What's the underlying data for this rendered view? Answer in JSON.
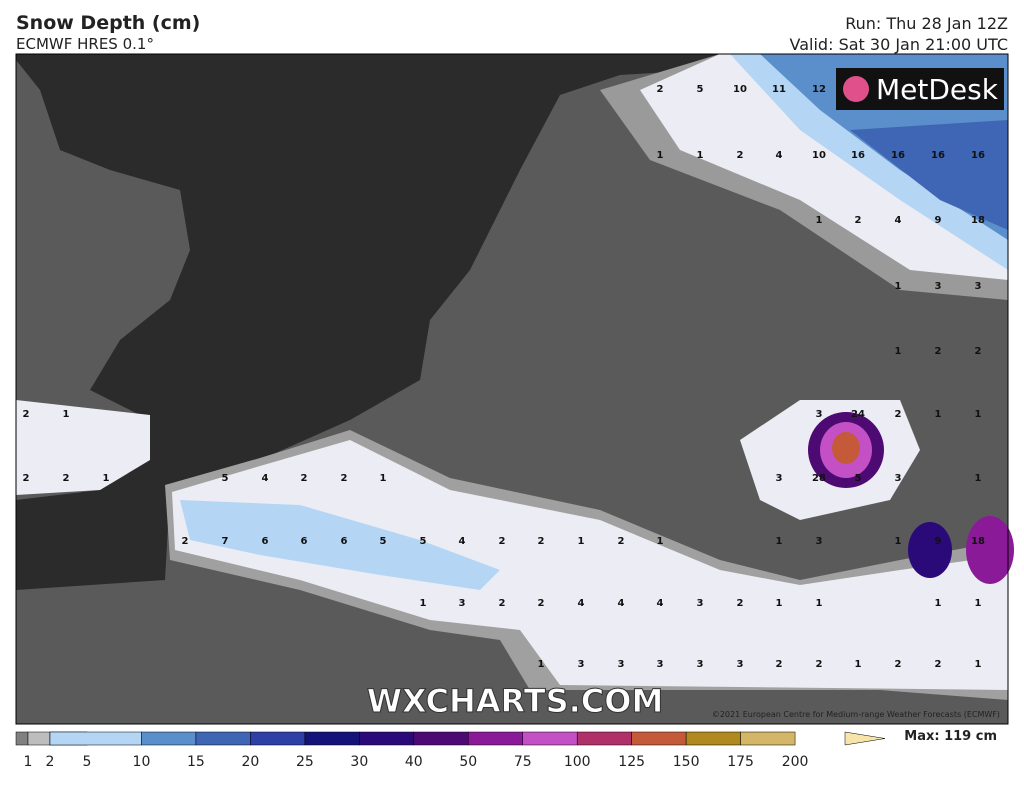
{
  "header": {
    "title": "Snow Depth (cm)",
    "subtitle": "ECMWF HRES 0.1°",
    "run": "Run: Thu 28 Jan 12Z",
    "valid": "Valid: Sat 30 Jan 21:00 UTC"
  },
  "logo": "MetDesk",
  "watermark": "WXCHARTS.COM",
  "copyright": "©2021 European Centre for Medium-range Weather Forecasts (ECMWF)",
  "map": {
    "values": [
      [
        2,
        5,
        10,
        11,
        12
      ],
      [
        1,
        1,
        2,
        4,
        10,
        16,
        16,
        16,
        16
      ],
      [
        1,
        2,
        4,
        9,
        18
      ],
      [
        1,
        3,
        3
      ],
      [
        1,
        2,
        2
      ],
      [
        2,
        1,
        3,
        24,
        2,
        1,
        1
      ],
      [
        2,
        2,
        1,
        5,
        4,
        2,
        2,
        1,
        3,
        28,
        5,
        3,
        1
      ],
      [
        2,
        7,
        6,
        6,
        6,
        5,
        5,
        4,
        2,
        2,
        1,
        2,
        1,
        1,
        3,
        1,
        9,
        18
      ],
      [
        1,
        3,
        2,
        2,
        4,
        4,
        4,
        3,
        2,
        1,
        1,
        1,
        1
      ],
      [
        1,
        3,
        3,
        3,
        3,
        3,
        2,
        2,
        1,
        2,
        2,
        1
      ]
    ]
  },
  "legend": {
    "ticks": [
      1,
      2,
      5,
      10,
      15,
      20,
      25,
      30,
      40,
      50,
      75,
      100,
      125,
      150,
      175,
      200
    ],
    "colors": [
      "#808080",
      "#bdbdbd",
      "#ececf4",
      "#b4d6f4",
      "#5b8fcb",
      "#3f66b4",
      "#2e3fa6",
      "#13137a",
      "#2a0a78",
      "#4c0a72",
      "#8a1a98",
      "#c450c6",
      "#b0306a",
      "#c45a3a",
      "#b08a1e",
      "#d4b668",
      "#f6e4a8"
    ],
    "max": "Max: 119 cm"
  }
}
